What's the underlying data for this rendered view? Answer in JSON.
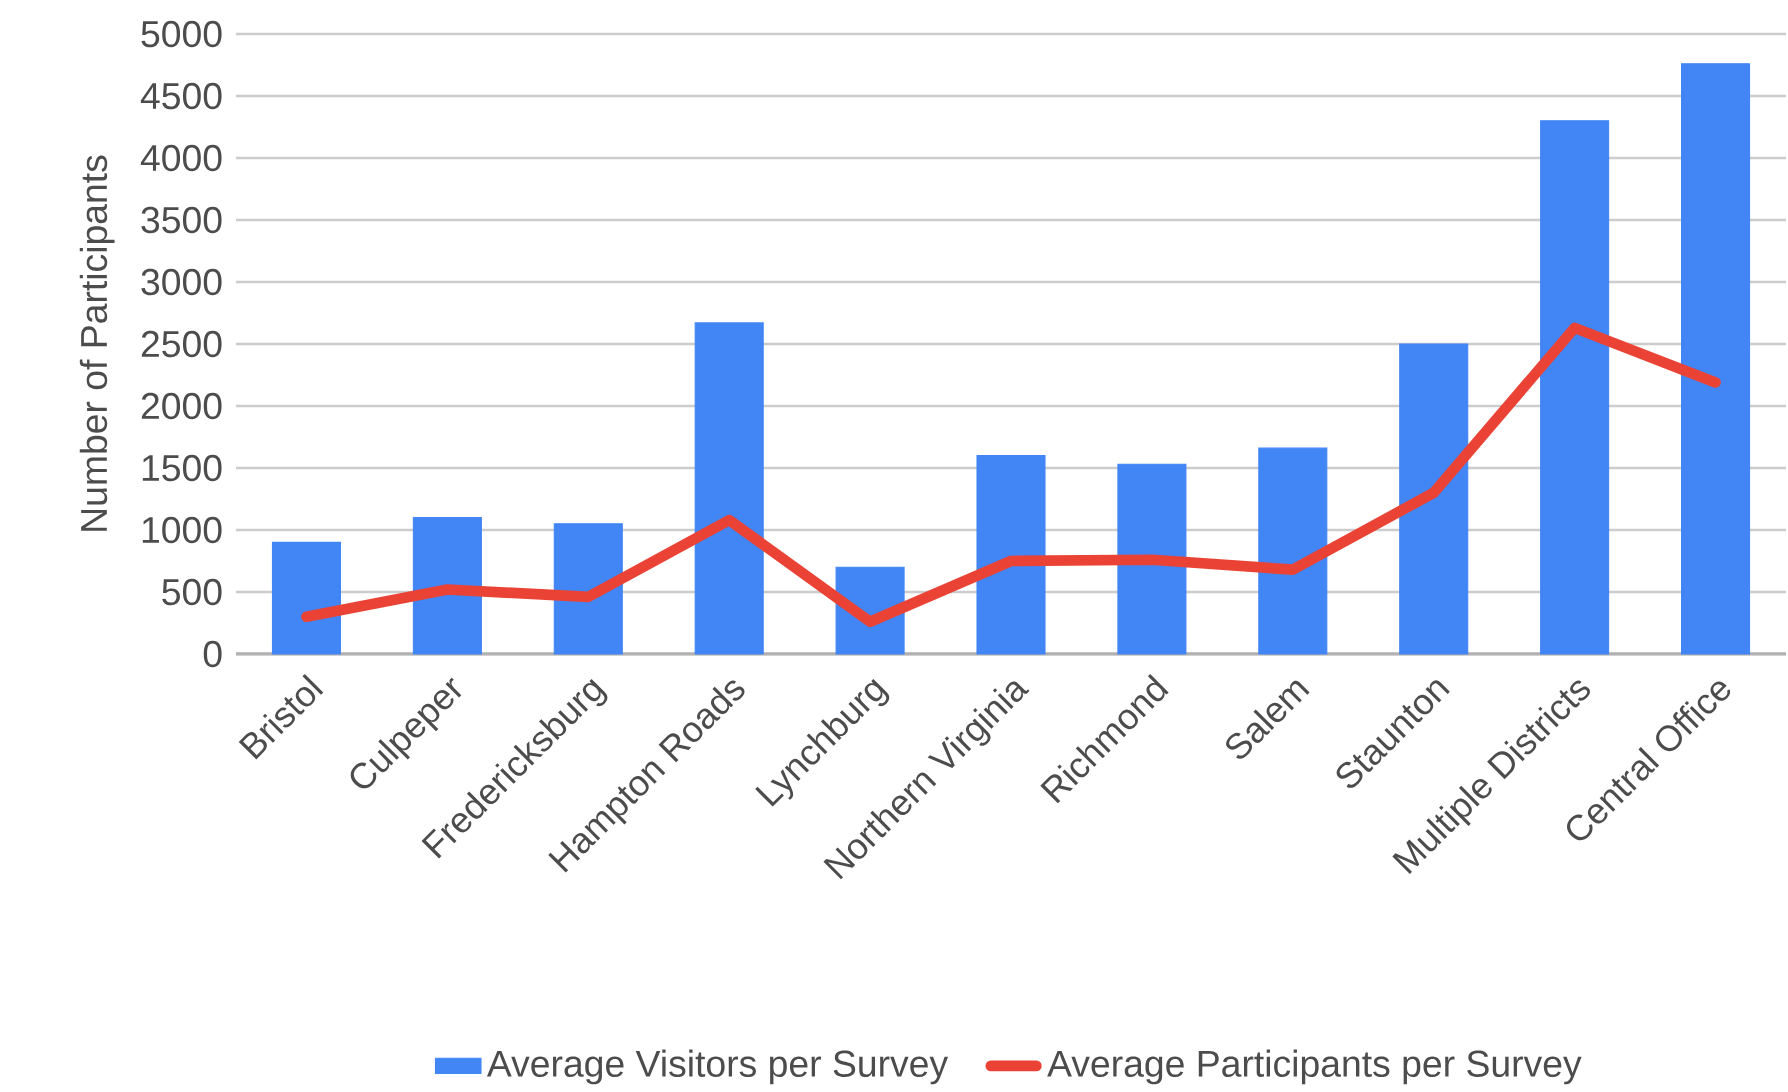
{
  "chart_data": {
    "type": "bar",
    "ylabel": "Number of Participants",
    "categories": [
      "Bristol",
      "Culpeper",
      "Fredericksburg",
      "Hampton Roads",
      "Lynchburg",
      "Northern Virginia",
      "Richmond",
      "Salem",
      "Staunton",
      "Multiple Districts",
      "Central Office"
    ],
    "series": [
      {
        "name": "Average Visitors per Survey",
        "color": "#4285f4",
        "values": [
          900,
          1100,
          1050,
          2670,
          700,
          1600,
          1530,
          1660,
          2500,
          4300,
          4760
        ]
      },
      {
        "name": "Average Participants per Survey",
        "type": "line",
        "color": "#ea4335",
        "values": [
          300,
          520,
          460,
          1080,
          260,
          750,
          760,
          680,
          1300,
          2630,
          2190
        ]
      }
    ],
    "ylim": [
      0,
      5000
    ],
    "yticks": [
      0,
      500,
      1000,
      1500,
      2000,
      2500,
      3000,
      3500,
      4000,
      4500,
      5000
    ],
    "grid": "y",
    "legend": "bottom",
    "marker": "none",
    "line_style": "solid"
  }
}
